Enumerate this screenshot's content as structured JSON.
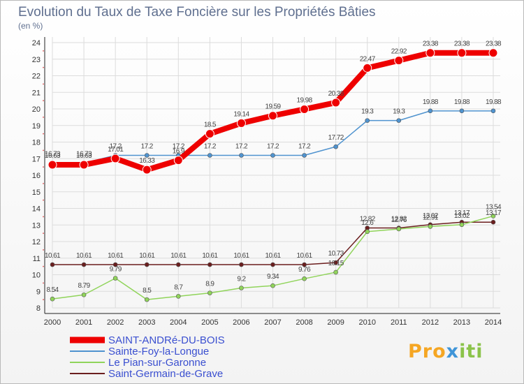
{
  "chart_data": {
    "type": "line",
    "title": "Evolution du Taux de Taxe Foncière sur les Propriétés Bâties",
    "subtitle": "(en %)",
    "x": [
      2000,
      2001,
      2002,
      2003,
      2004,
      2005,
      2006,
      2007,
      2008,
      2009,
      2010,
      2011,
      2012,
      2013,
      2014
    ],
    "ylim": [
      8,
      24
    ],
    "yticks": [
      8,
      9,
      10,
      11,
      12,
      13,
      14,
      15,
      16,
      17,
      18,
      19,
      20,
      21,
      22,
      23,
      24
    ],
    "legend_position": "bottom-left",
    "series": [
      {
        "name": "SAINT-ANDRé-DU-BOIS",
        "color": "#ee0000",
        "values": [
          16.63,
          16.63,
          17.01,
          16.33,
          16.9,
          18.5,
          19.14,
          19.59,
          19.98,
          20.38,
          22.47,
          22.92,
          23.38,
          23.38,
          23.38
        ],
        "labels": [
          "16.63",
          "16.63",
          "17.01",
          "16.33",
          "16.9",
          "18.5",
          "19.14",
          "19.59",
          "19.98",
          "20.38",
          "22.47",
          "22.92",
          "23.38",
          "23.38",
          "23.38"
        ]
      },
      {
        "name": "Sainte-Foy-la-Longue",
        "color": "#4f93cf",
        "values": [
          16.73,
          16.73,
          17.2,
          17.2,
          17.2,
          17.2,
          17.2,
          17.2,
          17.2,
          17.72,
          19.3,
          19.3,
          19.88,
          19.88,
          19.88
        ],
        "labels": [
          "16.73",
          "16.73",
          "17.2",
          "17.2",
          "17.2",
          "17.2",
          "17.2",
          "17.2",
          "17.2",
          "17.72",
          "19.3",
          "19.3",
          "19.88",
          "19.88",
          "19.88"
        ]
      },
      {
        "name": "Le Pian-sur-Garonne",
        "color": "#90d45a",
        "values": [
          8.54,
          8.79,
          9.79,
          8.5,
          8.7,
          8.9,
          9.2,
          9.34,
          9.76,
          10.15,
          12.6,
          12.76,
          12.91,
          13.02,
          13.54
        ],
        "labels": [
          "8.54",
          "8.79",
          "9.79",
          "8.5",
          "8.7",
          "8.9",
          "9.2",
          "9.34",
          "9.76",
          "10.15",
          "12.6",
          "12.76",
          "12.91",
          "13.02",
          "13.54"
        ]
      },
      {
        "name": "Saint-Germain-de-Grave",
        "color": "#6b1e1e",
        "values": [
          10.61,
          10.61,
          10.61,
          10.61,
          10.61,
          10.61,
          10.61,
          10.61,
          10.61,
          10.73,
          12.82,
          12.82,
          13.02,
          13.17,
          13.17
        ],
        "labels": [
          "10.61",
          "10.61",
          "10.61",
          "10.61",
          "10.61",
          "10.61",
          "10.61",
          "10.61",
          "10.61",
          "10.73",
          "12.82",
          "12.82",
          "13.02",
          "13.17",
          "13.17"
        ]
      }
    ]
  },
  "logo": {
    "p1": "Pro",
    "p2": "x",
    "p3": "iti"
  }
}
